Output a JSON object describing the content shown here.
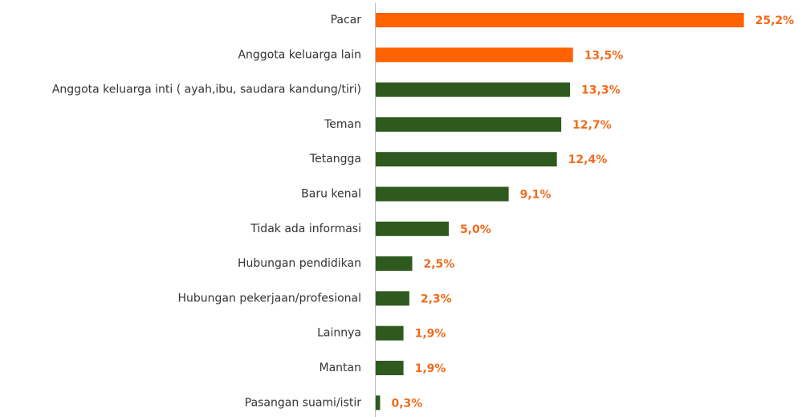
{
  "chart_data": {
    "type": "bar",
    "orientation": "horizontal",
    "categories": [
      "Pacar",
      "Anggota keluarga lain",
      "Anggota keluarga inti ( ayah,ibu, saudara kandung/tiri)",
      "Teman",
      "Tetangga",
      "Baru kenal",
      "Tidak ada informasi",
      "Hubungan pendidikan",
      "Hubungan pekerjaan/profesional",
      "Lainnya",
      "Mantan",
      "Pasangan suami/istir"
    ],
    "values": [
      25.2,
      13.5,
      13.3,
      12.7,
      12.4,
      9.1,
      5.0,
      2.5,
      2.3,
      1.9,
      1.9,
      0.3
    ],
    "value_labels": [
      "25,2%",
      "13,5%",
      "13,3%",
      "12,7%",
      "12,4%",
      "9,1%",
      "5,0%",
      "2,5%",
      "2,3%",
      "1,9%",
      "1,9%",
      "0,3%"
    ],
    "colors": [
      "#ff6200",
      "#ff6200",
      "#2f5a1f",
      "#2f5a1f",
      "#2f5a1f",
      "#2f5a1f",
      "#2f5a1f",
      "#2f5a1f",
      "#2f5a1f",
      "#2f5a1f",
      "#2f5a1f",
      "#2f5a1f"
    ]
  }
}
